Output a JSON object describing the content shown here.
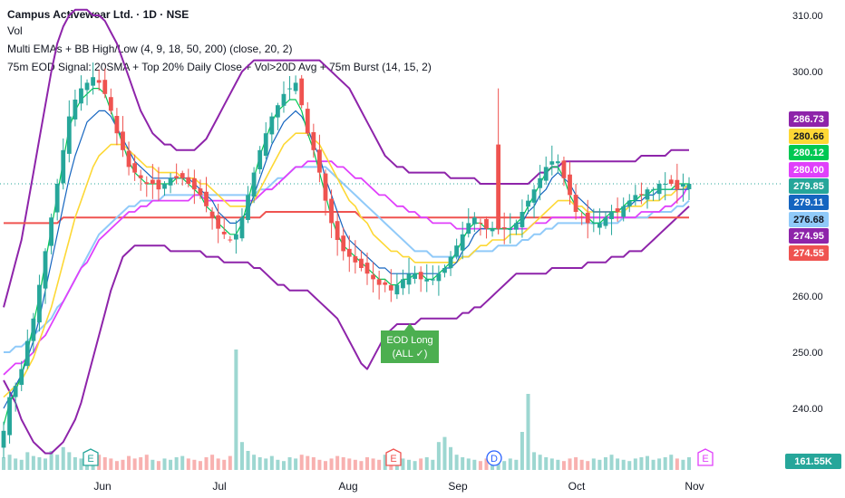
{
  "header": {
    "title": "Campus Activewear Ltd. · 1D · NSE",
    "vol": "Vol",
    "ema_label": "Multi EMAs + BB High/Low (4, 9, 18, 50, 200) (close, 20, 2)",
    "signal_label": "75m EOD Signal: 20SMA + Top 20% Daily Close + Vol>20D Avg + 75m Burst (14, 15, 2)"
  },
  "chart_data": {
    "type": "candlestick",
    "x_labels": [
      "Jun",
      "Jul",
      "Aug",
      "Sep",
      "Oct",
      "Nov"
    ],
    "y_ticks": [
      "310.00",
      "300.00",
      "260.00",
      "250.00",
      "240.00"
    ],
    "ylim": [
      234,
      311
    ],
    "price_tags": [
      {
        "value": "286.73",
        "color": "#8e24aa",
        "text_color": "#ffffff"
      },
      {
        "value": "280.66",
        "color": "#fdd835",
        "text_color": "#131722"
      },
      {
        "value": "280.12",
        "color": "#00c853",
        "text_color": "#ffffff"
      },
      {
        "value": "280.00",
        "color": "#e040fb",
        "text_color": "#ffffff"
      },
      {
        "value": "279.85",
        "color": "#26a69a",
        "text_color": "#ffffff"
      },
      {
        "value": "279.11",
        "color": "#1565c0",
        "text_color": "#ffffff"
      },
      {
        "value": "276.68",
        "color": "#90caf9",
        "text_color": "#131722"
      },
      {
        "value": "274.95",
        "color": "#8e24aa",
        "text_color": "#ffffff"
      },
      {
        "value": "274.55",
        "color": "#ef5350",
        "text_color": "#ffffff"
      }
    ],
    "volume_tag": {
      "value": "161.55K",
      "color": "#26a69a"
    },
    "signal": {
      "label_line1": "EOD Long",
      "label_line2": "(ALL ✓)",
      "color": "#4caf50"
    },
    "event_markers": [
      {
        "letter": "E",
        "color": "#26a69a"
      },
      {
        "letter": "E",
        "color": "#ef5350"
      },
      {
        "letter": "D",
        "color": "#2962ff"
      },
      {
        "letter": "E",
        "color": "#e040fb"
      }
    ],
    "series": [
      {
        "name": "EMA 4",
        "color": "#00c853"
      },
      {
        "name": "EMA 9",
        "color": "#1565c0"
      },
      {
        "name": "EMA 18",
        "color": "#fdd835"
      },
      {
        "name": "EMA 50",
        "color": "#e040fb"
      },
      {
        "name": "EMA 200",
        "color": "#ef5350"
      },
      {
        "name": "SMA 20",
        "color": "#90caf9"
      },
      {
        "name": "BB High/Low",
        "color": "#8e24aa"
      }
    ],
    "closes": [
      236,
      242,
      244,
      247,
      252,
      256,
      262,
      268,
      274,
      280,
      286,
      292,
      295,
      297,
      298,
      299,
      298,
      296,
      293,
      289,
      286,
      283,
      282,
      281,
      280,
      280,
      279,
      280,
      281,
      281,
      281,
      280,
      279,
      278,
      276,
      274,
      272,
      271,
      270,
      271,
      274,
      278,
      282,
      286,
      289,
      292,
      294,
      296,
      297,
      298,
      294,
      289,
      286,
      282,
      277,
      273,
      270,
      268,
      267,
      266,
      265,
      264,
      263,
      262,
      262,
      261,
      262,
      263,
      264,
      264,
      263,
      263,
      263,
      264,
      265,
      267,
      269,
      271,
      273,
      274,
      273,
      272,
      272,
      272,
      272,
      272,
      273,
      275,
      277,
      279,
      281,
      283,
      284,
      284,
      281,
      278,
      275,
      274,
      273,
      273,
      273,
      274,
      275,
      275,
      276,
      277,
      278,
      278,
      279,
      279,
      280,
      280,
      280,
      279,
      280,
      280
    ],
    "ema4": [
      237,
      241,
      243,
      246,
      250,
      255,
      260,
      266,
      272,
      278,
      284,
      290,
      293,
      295,
      296,
      297,
      297,
      296,
      293,
      290,
      287,
      284,
      282,
      281,
      280,
      280,
      280,
      280,
      280,
      281,
      281,
      280,
      279,
      278,
      276,
      275,
      273,
      272,
      271,
      271,
      273,
      277,
      281,
      285,
      288,
      291,
      293,
      294,
      295,
      295,
      293,
      289,
      286,
      282,
      278,
      274,
      271,
      269,
      268,
      267,
      266,
      265,
      264,
      263,
      263,
      262,
      262,
      263,
      263,
      264,
      264,
      263,
      263,
      264,
      265,
      266,
      268,
      270,
      272,
      273,
      273,
      272,
      272,
      272,
      272,
      272,
      273,
      274,
      276,
      278,
      280,
      282,
      283,
      283,
      281,
      278,
      276,
      275,
      274,
      273,
      273,
      274,
      275,
      275,
      276,
      277,
      277,
      278,
      278,
      279,
      279,
      279,
      279,
      280,
      280,
      280
    ],
    "ema9": [
      240,
      242,
      244,
      246,
      249,
      252,
      256,
      261,
      266,
      271,
      276,
      281,
      285,
      288,
      291,
      292,
      293,
      293,
      292,
      290,
      288,
      286,
      284,
      283,
      282,
      281,
      281,
      281,
      281,
      281,
      281,
      281,
      280,
      279,
      278,
      277,
      275,
      274,
      273,
      273,
      274,
      275,
      278,
      281,
      284,
      287,
      289,
      291,
      292,
      293,
      292,
      290,
      287,
      285,
      281,
      278,
      275,
      272,
      270,
      269,
      268,
      267,
      266,
      265,
      265,
      264,
      264,
      264,
      264,
      264,
      264,
      264,
      264,
      264,
      265,
      265,
      266,
      268,
      269,
      271,
      272,
      272,
      272,
      272,
      272,
      272,
      273,
      273,
      275,
      276,
      278,
      279,
      281,
      282,
      281,
      280,
      278,
      277,
      276,
      275,
      275,
      275,
      275,
      275,
      276,
      276,
      277,
      277,
      278,
      278,
      279,
      279,
      279,
      279,
      279,
      279
    ],
    "ema18": [
      242,
      243,
      244,
      245,
      247,
      249,
      252,
      255,
      258,
      262,
      266,
      270,
      274,
      277,
      280,
      283,
      285,
      286,
      287,
      287,
      287,
      286,
      285,
      284,
      283,
      283,
      282,
      282,
      282,
      282,
      281,
      281,
      281,
      280,
      280,
      279,
      278,
      277,
      276,
      276,
      276,
      276,
      277,
      279,
      281,
      283,
      285,
      287,
      288,
      289,
      289,
      289,
      288,
      287,
      285,
      283,
      281,
      279,
      277,
      276,
      274,
      273,
      271,
      270,
      269,
      268,
      268,
      267,
      267,
      266,
      266,
      266,
      266,
      266,
      266,
      266,
      266,
      267,
      267,
      268,
      269,
      269,
      270,
      270,
      270,
      271,
      271,
      271,
      272,
      273,
      274,
      275,
      276,
      277,
      277,
      277,
      276,
      276,
      275,
      275,
      275,
      275,
      275,
      275,
      275,
      276,
      276,
      276,
      277,
      277,
      277,
      278,
      278,
      279,
      279,
      280
    ],
    "ema50": [
      246,
      247,
      248,
      248,
      249,
      250,
      252,
      253,
      255,
      257,
      259,
      261,
      263,
      265,
      266,
      268,
      270,
      271,
      272,
      273,
      274,
      275,
      275,
      276,
      276,
      277,
      277,
      277,
      277,
      277,
      277,
      277,
      278,
      278,
      277,
      277,
      277,
      277,
      277,
      277,
      277,
      277,
      277,
      278,
      279,
      279,
      280,
      281,
      282,
      283,
      283,
      284,
      284,
      284,
      284,
      284,
      283,
      283,
      282,
      281,
      281,
      280,
      279,
      278,
      278,
      277,
      276,
      276,
      275,
      275,
      274,
      274,
      273,
      273,
      273,
      273,
      272,
      272,
      272,
      272,
      272,
      272,
      272,
      272,
      272,
      272,
      272,
      272,
      272,
      273,
      273,
      273,
      274,
      274,
      274,
      274,
      274,
      274,
      274,
      274,
      274,
      274,
      274,
      274,
      274,
      274,
      274,
      275,
      275,
      275,
      275,
      276,
      276,
      277,
      278,
      280
    ],
    "ema200": [
      273,
      273,
      273,
      273,
      273,
      273,
      273,
      273,
      273,
      273,
      274,
      274,
      274,
      274,
      274,
      274,
      274,
      274,
      274,
      274,
      274,
      274,
      274,
      274,
      274,
      274,
      274,
      274,
      274,
      274,
      274,
      274,
      274,
      274,
      274,
      274,
      274,
      274,
      274,
      274,
      274,
      274,
      274,
      274,
      275,
      275,
      275,
      275,
      275,
      275,
      275,
      275,
      275,
      275,
      275,
      275,
      275,
      275,
      275,
      275,
      274,
      274,
      274,
      274,
      274,
      274,
      274,
      274,
      274,
      274,
      274,
      274,
      274,
      274,
      274,
      274,
      274,
      274,
      274,
      274,
      274,
      274,
      274,
      274,
      274,
      274,
      274,
      274,
      274,
      274,
      274,
      274,
      274,
      274,
      274,
      274,
      274,
      274,
      274,
      274,
      274,
      274,
      274,
      274,
      274,
      274,
      274,
      274,
      274,
      274,
      274,
      274,
      274,
      274,
      274,
      274
    ],
    "sma20": [
      250,
      250,
      251,
      251,
      252,
      253,
      254,
      255,
      256,
      258,
      259,
      261,
      263,
      265,
      267,
      269,
      271,
      272,
      273,
      274,
      275,
      276,
      276,
      277,
      277,
      277,
      277,
      278,
      278,
      278,
      278,
      278,
      278,
      278,
      278,
      278,
      278,
      278,
      278,
      278,
      278,
      278,
      278,
      279,
      279,
      280,
      281,
      281,
      282,
      283,
      283,
      283,
      283,
      283,
      283,
      282,
      281,
      280,
      279,
      278,
      277,
      276,
      275,
      274,
      273,
      272,
      271,
      270,
      269,
      268,
      268,
      268,
      267,
      267,
      267,
      267,
      267,
      267,
      267,
      268,
      268,
      268,
      268,
      269,
      269,
      269,
      269,
      270,
      270,
      271,
      271,
      272,
      272,
      273,
      273,
      273,
      273,
      273,
      273,
      273,
      273,
      273,
      273,
      273,
      274,
      274,
      274,
      274,
      274,
      275,
      275,
      275,
      275,
      276,
      276,
      277
    ],
    "bb_high": [
      258,
      262,
      266,
      270,
      276,
      282,
      288,
      294,
      300,
      305,
      308,
      310,
      311,
      311,
      311,
      310,
      310,
      309,
      307,
      305,
      302,
      299,
      296,
      293,
      291,
      289,
      288,
      287,
      287,
      286,
      286,
      286,
      286,
      287,
      288,
      290,
      292,
      294,
      296,
      298,
      300,
      301,
      302,
      302,
      302,
      302,
      302,
      302,
      302,
      302,
      302,
      302,
      302,
      302,
      301,
      300,
      299,
      298,
      297,
      295,
      293,
      291,
      289,
      287,
      285,
      284,
      283,
      283,
      282,
      282,
      282,
      282,
      282,
      282,
      282,
      281,
      281,
      281,
      281,
      281,
      280,
      280,
      280,
      280,
      280,
      280,
      280,
      280,
      280,
      281,
      282,
      282,
      283,
      283,
      284,
      284,
      284,
      284,
      284,
      284,
      284,
      284,
      284,
      284,
      284,
      284,
      284,
      285,
      285,
      285,
      285,
      285,
      286,
      286,
      286,
      286
    ],
    "bb_low": [
      245,
      243,
      241,
      238,
      236,
      234,
      233,
      232,
      232,
      233,
      234,
      236,
      238,
      241,
      245,
      249,
      253,
      257,
      261,
      264,
      267,
      268,
      269,
      269,
      269,
      269,
      269,
      269,
      268,
      268,
      268,
      268,
      268,
      268,
      267,
      267,
      267,
      266,
      266,
      266,
      266,
      266,
      265,
      265,
      264,
      263,
      262,
      262,
      261,
      261,
      261,
      261,
      260,
      259,
      258,
      257,
      256,
      254,
      252,
      250,
      248,
      247,
      249,
      251,
      253,
      254,
      255,
      255,
      255,
      255,
      256,
      256,
      256,
      256,
      256,
      256,
      256,
      257,
      257,
      258,
      258,
      259,
      260,
      261,
      262,
      263,
      264,
      264,
      264,
      264,
      264,
      264,
      265,
      265,
      265,
      265,
      265,
      265,
      266,
      266,
      266,
      266,
      267,
      267,
      267,
      268,
      268,
      268,
      269,
      270,
      271,
      272,
      273,
      274,
      275,
      276
    ],
    "volume": [
      10,
      12,
      9,
      8,
      14,
      11,
      10,
      9,
      15,
      12,
      18,
      14,
      10,
      9,
      11,
      8,
      12,
      10,
      9,
      7,
      8,
      11,
      9,
      10,
      12,
      8,
      7,
      9,
      8,
      10,
      11,
      9,
      8,
      7,
      10,
      12,
      9,
      8,
      11,
      95,
      22,
      15,
      12,
      10,
      9,
      11,
      8,
      7,
      10,
      9,
      12,
      11,
      10,
      8,
      7,
      9,
      11,
      10,
      9,
      8,
      7,
      10,
      9,
      8,
      12,
      14,
      10,
      9,
      8,
      7,
      9,
      10,
      8,
      22,
      26,
      18,
      12,
      10,
      9,
      8,
      7,
      9,
      10,
      8,
      7,
      9,
      8,
      30,
      60,
      14,
      12,
      10,
      9,
      8,
      7,
      9,
      10,
      8,
      7,
      9,
      8,
      10,
      12,
      9,
      8,
      7,
      9,
      10,
      11,
      8,
      9,
      10,
      12,
      9,
      8,
      10
    ]
  }
}
